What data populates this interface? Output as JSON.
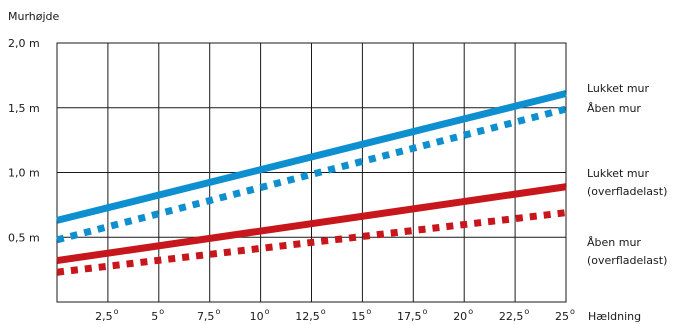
{
  "chart_data": {
    "type": "line",
    "ylabel": "Murhøjde",
    "xlabel": "Hældning",
    "degree_symbol": "o",
    "x": [
      0,
      25
    ],
    "xlim": [
      0,
      25
    ],
    "ylim": [
      0,
      2.0
    ],
    "grid": true,
    "x_ticks": [
      {
        "value": 2.5,
        "label": "2,5"
      },
      {
        "value": 5,
        "label": "5"
      },
      {
        "value": 7.5,
        "label": "7,5"
      },
      {
        "value": 10,
        "label": "10"
      },
      {
        "value": 12.5,
        "label": "12,5"
      },
      {
        "value": 15,
        "label": "15"
      },
      {
        "value": 17.5,
        "label": "17,5"
      },
      {
        "value": 20,
        "label": "20"
      },
      {
        "value": 22.5,
        "label": "22,5"
      },
      {
        "value": 25,
        "label": "25"
      }
    ],
    "y_ticks": [
      {
        "value": 0.5,
        "label": "0,5 m"
      },
      {
        "value": 1.0,
        "label": "1,0 m"
      },
      {
        "value": 1.5,
        "label": "1,5 m"
      },
      {
        "value": 2.0,
        "label": "2,0 m"
      }
    ],
    "series": [
      {
        "name": "Lukket mur",
        "name_lines": [
          "Lukket mur"
        ],
        "values": [
          0.63,
          1.61
        ],
        "color": "#0e8fcf",
        "style": "solid"
      },
      {
        "name": "Åben mur",
        "name_lines": [
          "Åben mur"
        ],
        "values": [
          0.48,
          1.49
        ],
        "color": "#0e8fcf",
        "style": "dotted"
      },
      {
        "name": "Lukket mur (overfladelast)",
        "name_lines": [
          "Lukket mur",
          "(overfladelast)"
        ],
        "values": [
          0.32,
          0.89
        ],
        "color": "#c8161d",
        "style": "solid"
      },
      {
        "name": "Åben mur (overfladelast)",
        "name_lines": [
          "Åben mur",
          "(overfladelast)"
        ],
        "values": [
          0.23,
          0.69
        ],
        "color": "#c8161d",
        "style": "dotted"
      }
    ]
  }
}
